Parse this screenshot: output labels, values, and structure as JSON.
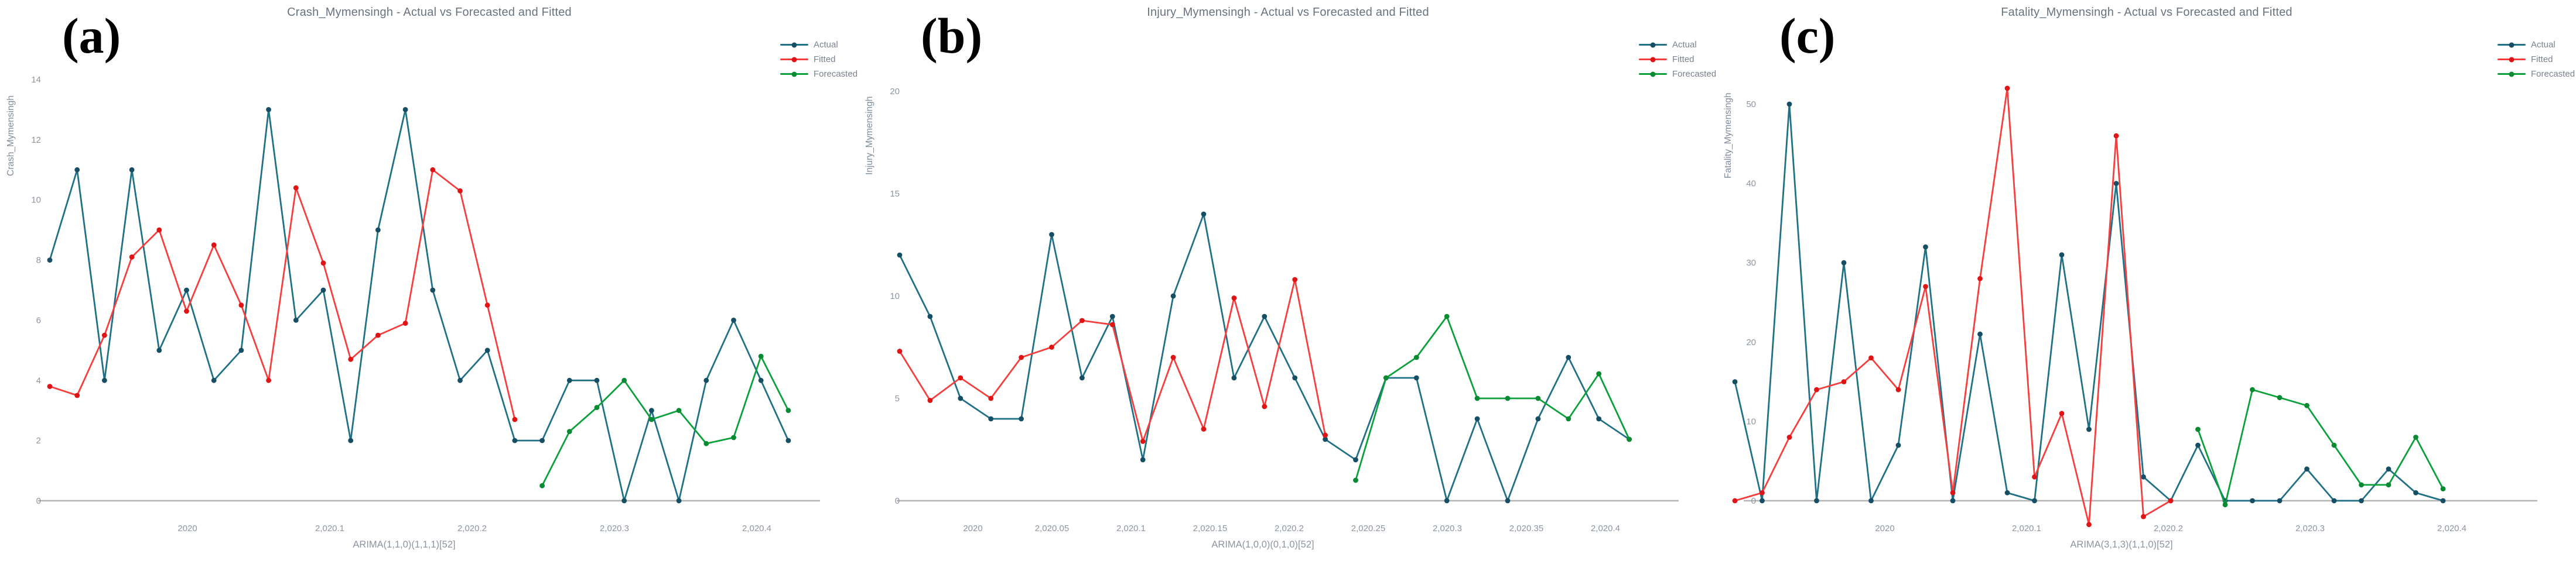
{
  "page": {
    "background": "#ffffff"
  },
  "colors": {
    "axis_line": "#b4b4b4",
    "tick_text": "#8d95a0",
    "title_text": "#68737f",
    "ylabel_text": "#7f8c9b",
    "panel_label_text": "#000000",
    "series": {
      "Actual": "#207086",
      "Fitted": "#f73e3e",
      "Forecasted": "#0aa03a"
    },
    "markers": {
      "Actual": "#164e63",
      "Fitted": "#e01414",
      "Forecasted": "#078a31"
    }
  },
  "legend": {
    "items": [
      {
        "label": "Actual"
      },
      {
        "label": "Fitted"
      },
      {
        "label": "Forecasted"
      }
    ]
  },
  "chart_data": [
    {
      "id": "crash",
      "type": "line",
      "panel_label": "(a)",
      "title": "Crash_Mymensingh - Actual vs Forecasted and Fitted",
      "ylabel": "Crash_Mymensingh",
      "xlabel": "ARIMA(1,1,0)(1,1,1)[52]",
      "x_unit": "weekly",
      "x_start_year": 2019.904,
      "x_step_years": 0.019231,
      "ylim": [
        0,
        14
      ],
      "yticks": [
        0,
        2,
        4,
        6,
        8,
        10,
        12,
        14
      ],
      "xtick_labels": [
        "2020",
        "2,020.1",
        "2,020.2",
        "2,020.3",
        "2,020.4"
      ],
      "grid": false,
      "legend_position": "top-right",
      "series": [
        {
          "name": "Actual",
          "start_index": 0,
          "values": [
            8,
            11,
            4,
            11,
            5,
            7,
            4,
            5,
            13,
            6,
            7,
            2,
            9,
            13,
            7,
            4,
            5,
            2,
            2,
            4,
            4,
            0,
            3,
            0,
            4,
            6,
            4,
            2
          ]
        },
        {
          "name": "Fitted",
          "start_index": 0,
          "values": [
            3.8,
            3.5,
            5.5,
            8.1,
            9,
            6.3,
            8.5,
            6.5,
            4,
            10.4,
            7.9,
            4.7,
            5.5,
            5.9,
            11,
            10.3,
            6.5,
            2.7
          ]
        },
        {
          "name": "Forecasted",
          "start_index": 18,
          "values": [
            0.5,
            2.3,
            3.1,
            4,
            2.7,
            3,
            1.9,
            2.1,
            4.8,
            3
          ]
        }
      ]
    },
    {
      "id": "injury",
      "type": "line",
      "panel_label": "(b)",
      "title": "Injury_Mymensingh - Actual vs Forecasted and Fitted",
      "ylabel": "Injury_Mymensingh",
      "xlabel": "ARIMA(1,0,0)(0,1,0)[52]",
      "x_unit": "weekly",
      "x_start_year": 2019.954,
      "x_step_years": 0.019231,
      "ylim": [
        0,
        20
      ],
      "yticks": [
        0,
        5,
        10,
        15,
        20
      ],
      "xtick_labels": [
        "2020",
        "2,020.05",
        "2,020.1",
        "2,020.15",
        "2,020.2",
        "2,020.25",
        "2,020.3",
        "2,020.35",
        "2,020.4"
      ],
      "grid": false,
      "legend_position": "top-right",
      "series": [
        {
          "name": "Actual",
          "start_index": 0,
          "values": [
            12,
            9,
            5,
            4,
            4,
            13,
            6,
            9,
            2,
            10,
            14,
            6,
            9,
            6,
            3,
            2,
            6,
            6,
            0,
            4,
            0,
            4,
            7,
            4,
            3
          ]
        },
        {
          "name": "Fitted",
          "start_index": 0,
          "values": [
            7.3,
            4.9,
            6,
            5,
            7,
            7.5,
            8.8,
            8.6,
            2.9,
            7,
            3.5,
            9.9,
            4.6,
            10.8,
            3.2
          ]
        },
        {
          "name": "Forecasted",
          "start_index": 15,
          "values": [
            1,
            6,
            7,
            9,
            5,
            5,
            5,
            4,
            6.2,
            3
          ]
        }
      ]
    },
    {
      "id": "fatality",
      "type": "line",
      "panel_label": "(c)",
      "title": "Fatality_Mymensingh - Actual vs Forecasted and Fitted",
      "ylabel": "Fatality_Mymensingh",
      "xlabel": "ARIMA(3,1,3)(1,1,0)[52]",
      "x_unit": "weekly",
      "x_start_year": 2019.892,
      "x_step_years": 0.019231,
      "ylim": [
        0,
        50
      ],
      "yticks": [
        0,
        10,
        20,
        30,
        40,
        50
      ],
      "xtick_labels": [
        "2020",
        "2,020.1",
        "2,020.2",
        "2,020.3",
        "2,020.4"
      ],
      "grid": false,
      "legend_position": "top-right",
      "series": [
        {
          "name": "Actual",
          "start_index": 0,
          "values": [
            15,
            0,
            50,
            0,
            30,
            0,
            7,
            32,
            0,
            21,
            1,
            0,
            31,
            9,
            40,
            3,
            0,
            7,
            0,
            0,
            0,
            4,
            0,
            0,
            4,
            1,
            0
          ]
        },
        {
          "name": "Fitted",
          "start_index": 0,
          "values": [
            0,
            1,
            8,
            14,
            15,
            18,
            14,
            27,
            1,
            28,
            52,
            3,
            11,
            -3,
            46,
            -2,
            0
          ]
        },
        {
          "name": "Forecasted",
          "start_index": 17,
          "values": [
            9,
            -0.5,
            14,
            13,
            12,
            7,
            2,
            2,
            8,
            1.5
          ]
        }
      ]
    }
  ]
}
